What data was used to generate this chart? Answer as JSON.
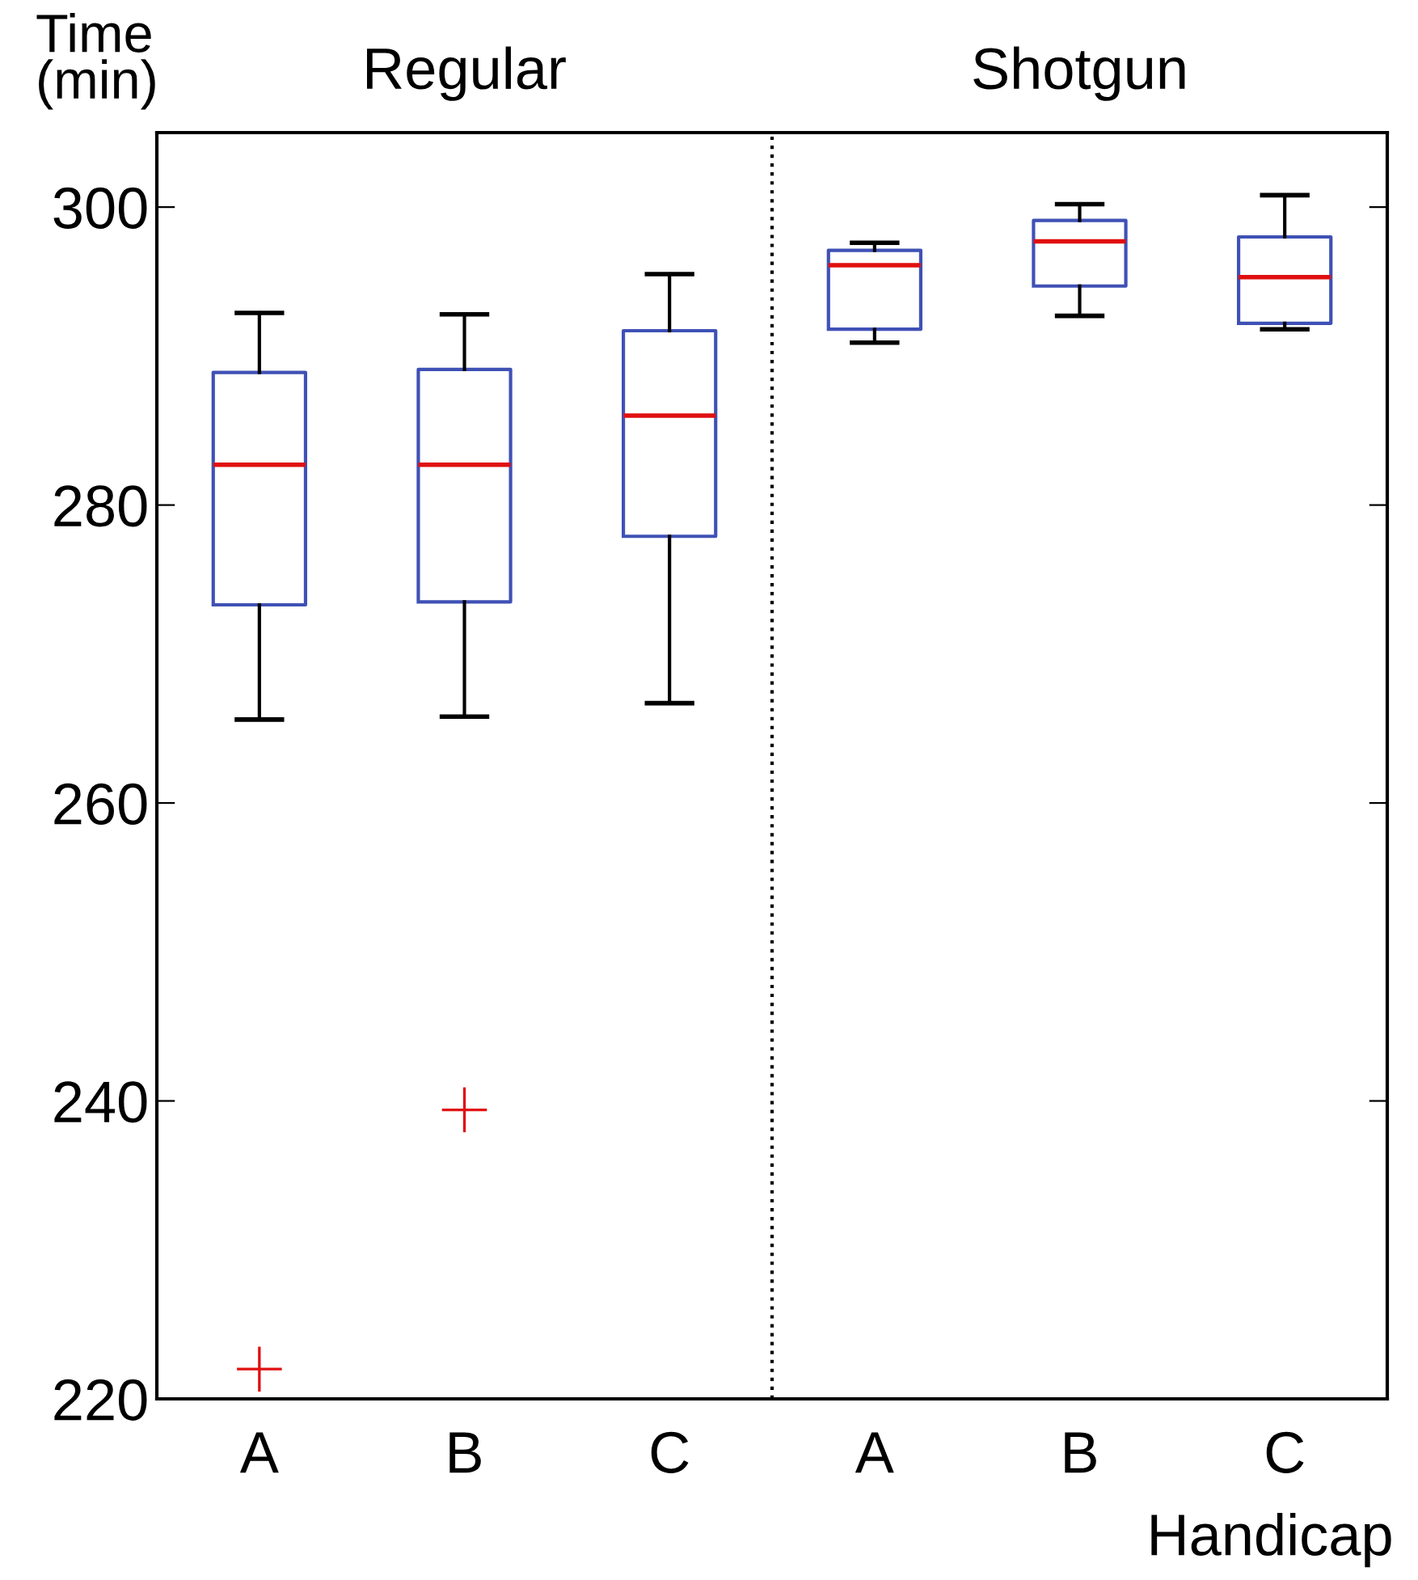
{
  "chart_data": {
    "type": "box",
    "categories": [
      "A",
      "B",
      "C",
      "A",
      "B",
      "C"
    ],
    "xlabel": "Handicap",
    "ylabel": "Time\n(min)",
    "annotations": [
      "Regular",
      "Shotgun"
    ],
    "ylim": [
      220,
      305
    ],
    "yticks": [
      220,
      240,
      260,
      280,
      300
    ],
    "marker": "cross",
    "series": [
      {
        "color": "#3f51b5",
        "boxes": [
          {
            "low": 265.6,
            "q1": 273.3,
            "median": 282.7,
            "q3": 288.9,
            "high": 292.9,
            "outliers": [
              222.0
            ]
          },
          {
            "low": 265.8,
            "q1": 273.5,
            "median": 282.7,
            "q3": 289.1,
            "high": 292.8,
            "outliers": [
              239.4
            ]
          },
          {
            "low": 266.7,
            "q1": 277.9,
            "median": 286.0,
            "q3": 291.7,
            "high": 295.5
          },
          {
            "low": 290.9,
            "q1": 291.8,
            "median": 296.1,
            "q3": 297.1,
            "high": 297.6
          },
          {
            "low": 292.7,
            "q1": 294.7,
            "median": 297.7,
            "q3": 299.1,
            "high": 300.2
          },
          {
            "low": 291.8,
            "q1": 292.2,
            "median": 295.3,
            "q3": 298.0,
            "high": 300.8
          }
        ]
      }
    ]
  }
}
